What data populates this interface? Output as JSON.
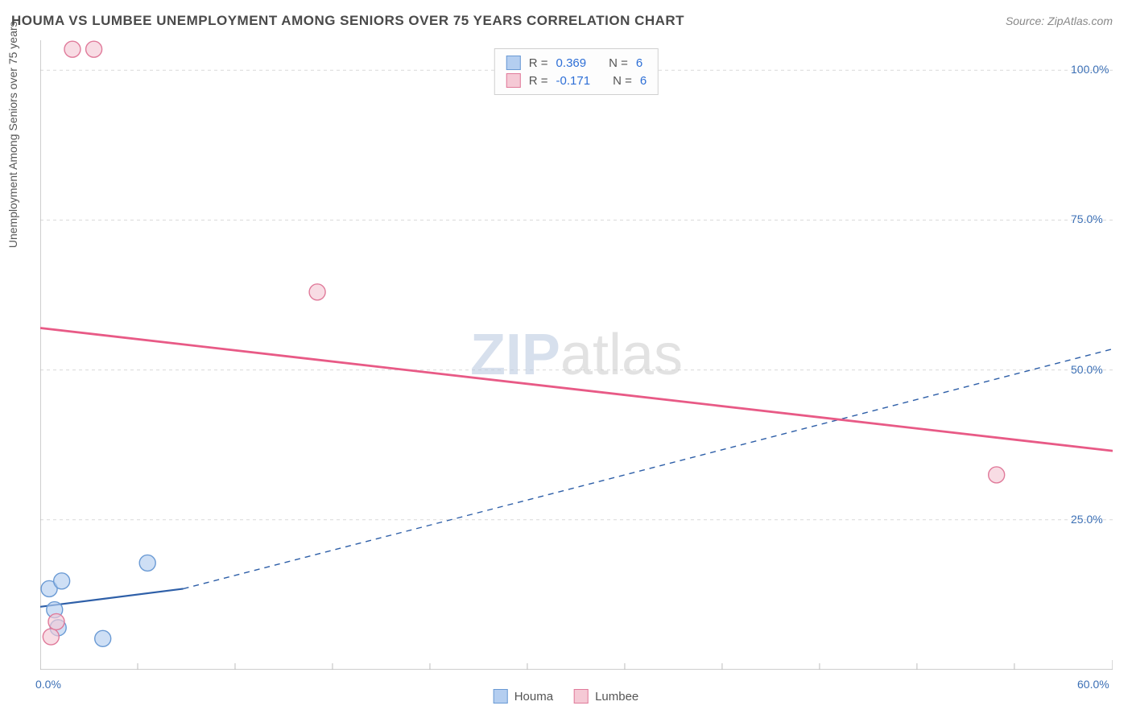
{
  "title": "HOUMA VS LUMBEE UNEMPLOYMENT AMONG SENIORS OVER 75 YEARS CORRELATION CHART",
  "source": "Source: ZipAtlas.com",
  "y_axis_label": "Unemployment Among Seniors over 75 years",
  "watermark_part1": "ZIP",
  "watermark_part2": "atlas",
  "chart": {
    "type": "scatter-with-trendlines",
    "xlim": [
      0,
      60
    ],
    "ylim": [
      0,
      105
    ],
    "x_ticks": [
      0,
      60
    ],
    "x_tick_labels": [
      "0.0%",
      "60.0%"
    ],
    "x_minor_ticks": [
      5.45,
      10.9,
      16.35,
      21.8,
      27.25,
      32.7,
      38.15,
      43.6,
      49.05,
      54.5
    ],
    "y_ticks": [
      25,
      50,
      75,
      100
    ],
    "y_tick_labels": [
      "25.0%",
      "50.0%",
      "75.0%",
      "100.0%"
    ],
    "grid_color": "#d9d9d9",
    "axis_color": "#bdbdbd",
    "background_color": "#ffffff",
    "series": [
      {
        "name": "Houma",
        "color_fill": "#b4cef0",
        "color_stroke": "#6a9ad4",
        "marker_radius": 10,
        "points": [
          {
            "x": 0.5,
            "y": 13.5
          },
          {
            "x": 0.8,
            "y": 10.0
          },
          {
            "x": 1.2,
            "y": 14.8
          },
          {
            "x": 1.0,
            "y": 7.0
          },
          {
            "x": 3.5,
            "y": 5.2
          },
          {
            "x": 6.0,
            "y": 17.8
          }
        ],
        "trend_solid": {
          "x0": 0,
          "y0": 10.5,
          "x1": 8,
          "y1": 13.5
        },
        "trend_dashed": {
          "x0": 8,
          "y0": 13.5,
          "x1": 60,
          "y1": 53.5
        },
        "line_color": "#2e5fa8",
        "line_width": 2.2
      },
      {
        "name": "Lumbee",
        "color_fill": "#f5c9d5",
        "color_stroke": "#e07a9a",
        "marker_radius": 10,
        "points": [
          {
            "x": 0.6,
            "y": 5.5
          },
          {
            "x": 0.9,
            "y": 8.0
          },
          {
            "x": 1.8,
            "y": 103.5
          },
          {
            "x": 3.0,
            "y": 103.5
          },
          {
            "x": 15.5,
            "y": 63.0
          },
          {
            "x": 53.5,
            "y": 32.5
          }
        ],
        "trend_solid": {
          "x0": 0,
          "y0": 57.0,
          "x1": 60,
          "y1": 36.5
        },
        "line_color": "#e85a86",
        "line_width": 2.8
      }
    ]
  },
  "stats": [
    {
      "swatch_fill": "#b4cef0",
      "swatch_stroke": "#6a9ad4",
      "r_label": "R =",
      "r": "0.369",
      "n_label": "N =",
      "n": "6"
    },
    {
      "swatch_fill": "#f5c9d5",
      "swatch_stroke": "#e07a9a",
      "r_label": "R =",
      "r": "-0.171",
      "n_label": "N =",
      "n": "6"
    }
  ],
  "legend": [
    {
      "swatch_fill": "#b4cef0",
      "swatch_stroke": "#6a9ad4",
      "label": "Houma"
    },
    {
      "swatch_fill": "#f5c9d5",
      "swatch_stroke": "#e07a9a",
      "label": "Lumbee"
    }
  ]
}
